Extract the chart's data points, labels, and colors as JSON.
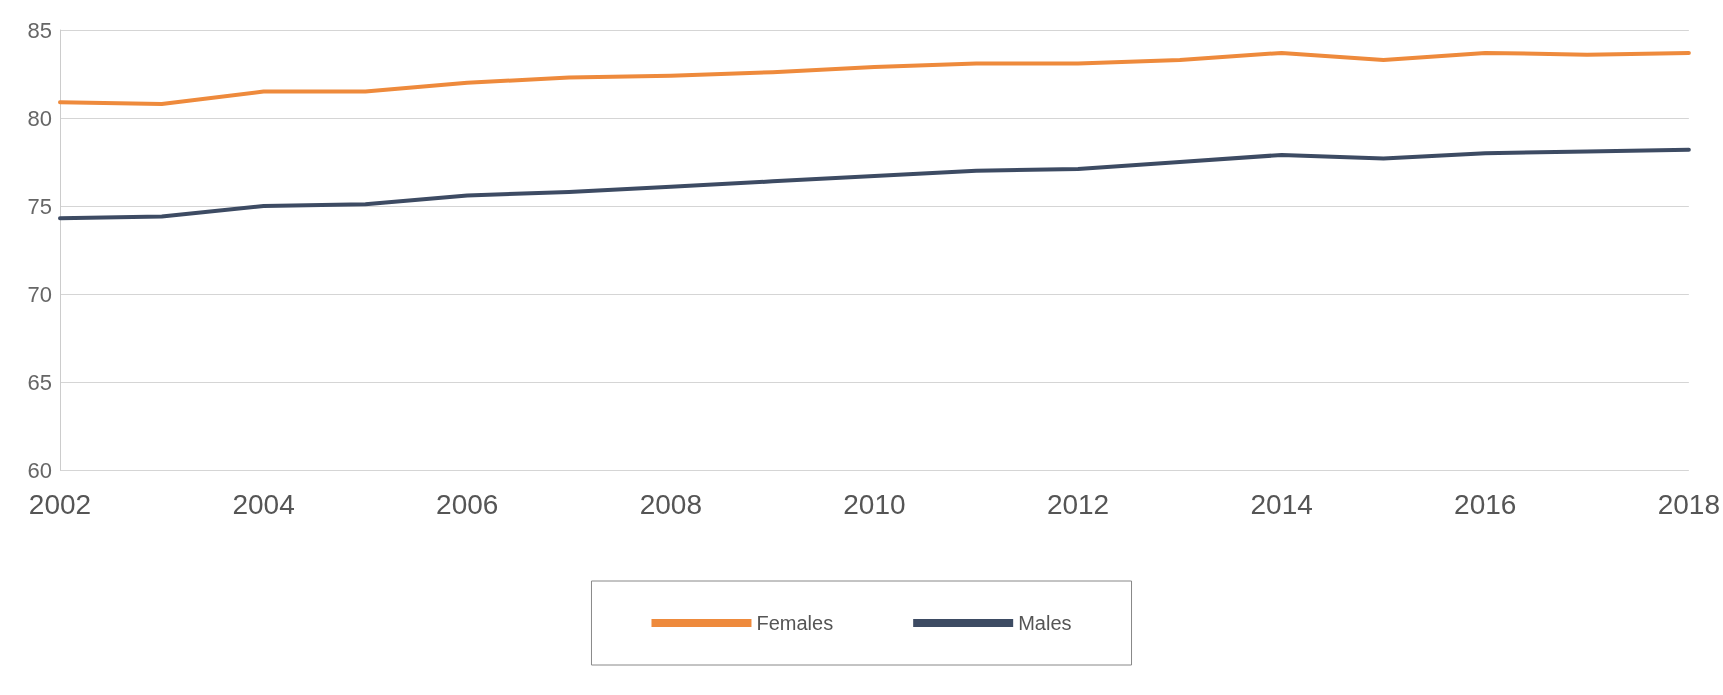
{
  "chart_data": {
    "type": "line",
    "x": [
      2002,
      2003,
      2004,
      2005,
      2006,
      2007,
      2008,
      2009,
      2010,
      2011,
      2012,
      2013,
      2014,
      2015,
      2016,
      2017,
      2018
    ],
    "series": [
      {
        "name": "Females",
        "color": "#ee8a3c",
        "values": [
          80.9,
          80.8,
          81.5,
          81.5,
          82.0,
          82.3,
          82.4,
          82.6,
          82.9,
          83.1,
          83.1,
          83.3,
          83.7,
          83.3,
          83.7,
          83.6,
          83.7
        ]
      },
      {
        "name": "Males",
        "color": "#3d4b63",
        "values": [
          74.3,
          74.4,
          75.0,
          75.1,
          75.6,
          75.8,
          76.1,
          76.4,
          76.7,
          77.0,
          77.1,
          77.5,
          77.9,
          77.7,
          78.0,
          78.1,
          78.2
        ]
      }
    ],
    "xlim": [
      2002,
      2018
    ],
    "xticks": [
      2002,
      2004,
      2006,
      2008,
      2010,
      2012,
      2014,
      2016,
      2018
    ],
    "ylim": [
      60,
      85
    ],
    "yticks": [
      60,
      65,
      70,
      75,
      80,
      85
    ],
    "grid": "y",
    "legend": "bottom",
    "marker": "none",
    "line_style": "solid"
  }
}
